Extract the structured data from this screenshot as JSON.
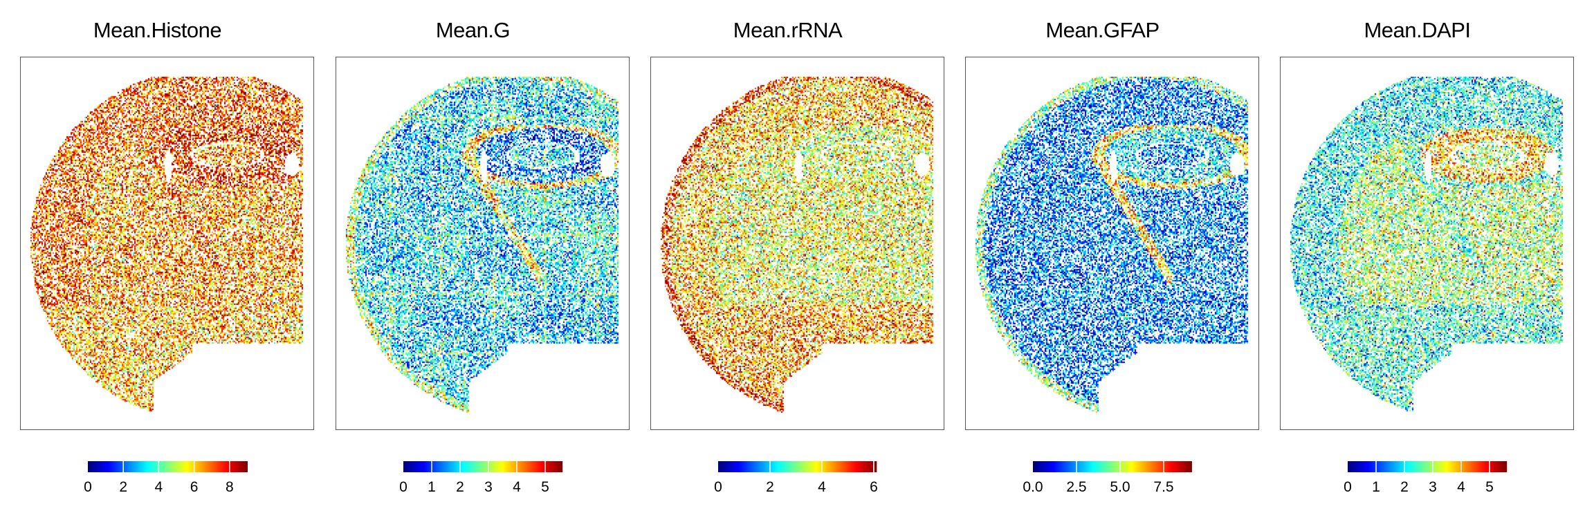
{
  "figure": {
    "colormap": "jet",
    "colormap_stops": [
      "#00007f",
      "#0000ff",
      "#007fff",
      "#00ffff",
      "#7fff7f",
      "#ffff00",
      "#ff7f00",
      "#ff0000",
      "#7f0000"
    ]
  },
  "chart_data": [
    {
      "type": "scatter",
      "title": "Mean.Histone",
      "xlabel": "",
      "ylabel": "",
      "grid": false,
      "legend": "colorbar-bottom",
      "color_range": [
        0,
        9.0
      ],
      "colorbar_ticks": [
        "0",
        "2",
        "4",
        "6",
        "8"
      ],
      "colorbar_tick_values": [
        0,
        2,
        4,
        6,
        8
      ],
      "description": "Spatial map of coronal brain section (left hemisphere); values mostly high (~6-8, orange/red) throughout",
      "region_means": {
        "cortex": 7.2,
        "hippocampus": 7.8,
        "striatum_thalamus": 6.6,
        "white_matter": 7.4,
        "ventral": 6.3
      }
    },
    {
      "type": "scatter",
      "title": "Mean.G",
      "xlabel": "",
      "ylabel": "",
      "grid": false,
      "legend": "colorbar-bottom",
      "color_range": [
        0,
        5.6
      ],
      "colorbar_ticks": [
        "0",
        "1",
        "2",
        "3",
        "4",
        "5"
      ],
      "colorbar_tick_values": [
        0,
        1,
        2,
        3,
        4,
        5
      ],
      "description": "Mostly low-mid values (~1-2.5, blue/cyan) with tile-grid artifacts; higher (~3.5-4.5) at ventricles/white matter edges",
      "region_means": {
        "cortex": 1.8,
        "hippocampus": 0.9,
        "striatum_thalamus": 1.9,
        "white_matter": 3.6,
        "ventral": 1.7
      }
    },
    {
      "type": "scatter",
      "title": "Mean.rRNA",
      "xlabel": "",
      "ylabel": "",
      "grid": false,
      "legend": "colorbar-bottom",
      "color_range": [
        0,
        6.1
      ],
      "colorbar_ticks": [
        "0",
        "2",
        "4",
        "6"
      ],
      "colorbar_tick_values": [
        0,
        2,
        4,
        6
      ],
      "description": "Mid-high values (~3-5, yellow/orange); outer cortex edge highest",
      "region_means": {
        "cortex": 4.2,
        "hippocampus": 3.6,
        "striatum_thalamus": 3.7,
        "white_matter": 3.9,
        "ventral": 4.4
      }
    },
    {
      "type": "scatter",
      "title": "Mean.GFAP",
      "xlabel": "",
      "ylabel": "",
      "grid": false,
      "legend": "colorbar-bottom",
      "color_range": [
        0,
        9.1
      ],
      "colorbar_ticks": [
        "0.0",
        "2.5",
        "5.0",
        "7.5"
      ],
      "colorbar_tick_values": [
        0,
        2.5,
        5.0,
        7.5
      ],
      "description": "Mostly low (~1-3, blue); high (~5-8) along white matter tracts, hippocampal fissure and pial surface",
      "region_means": {
        "cortex": 2.0,
        "hippocampus": 3.2,
        "striatum_thalamus": 2.2,
        "white_matter": 6.0,
        "ventral": 2.1
      }
    },
    {
      "type": "scatter",
      "title": "Mean.DAPI",
      "xlabel": "",
      "ylabel": "",
      "grid": false,
      "legend": "colorbar-bottom",
      "color_range": [
        0,
        5.6
      ],
      "colorbar_ticks": [
        "0",
        "1",
        "2",
        "3",
        "4",
        "5"
      ],
      "colorbar_tick_values": [
        0,
        1,
        2,
        3,
        4,
        5
      ],
      "description": "Mixed values (~1.5-3.5); dorsal cortex low (blue), thalamus and hippocampal cell layers higher (yellow/orange)",
      "region_means": {
        "cortex": 2.1,
        "hippocampus": 3.9,
        "striatum_thalamus": 3.0,
        "white_matter": 2.4,
        "ventral": 2.3
      }
    }
  ]
}
